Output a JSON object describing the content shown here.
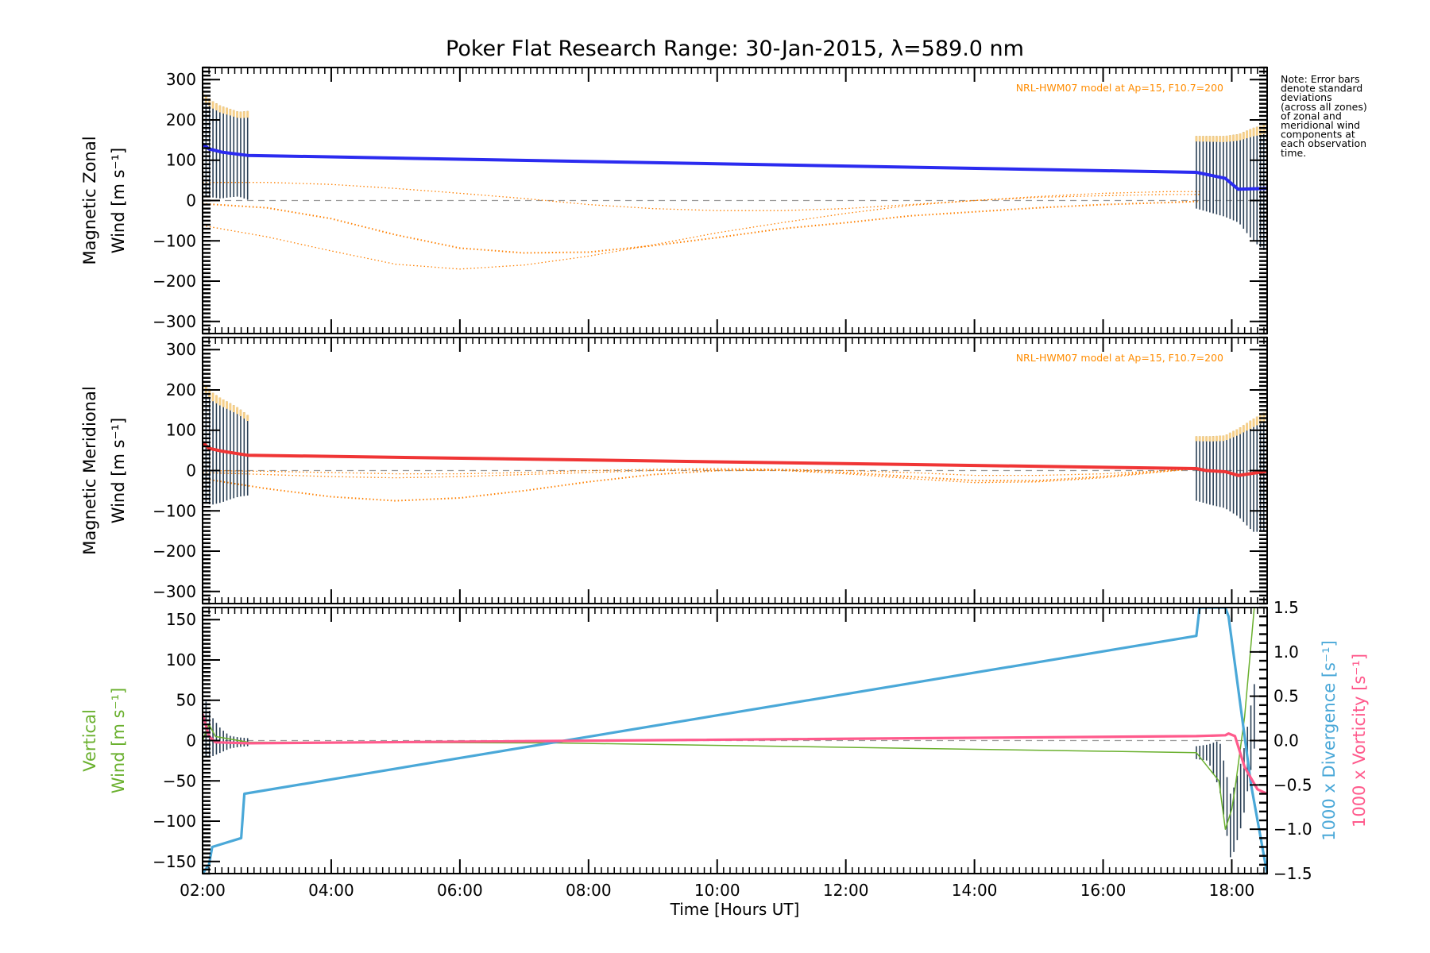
{
  "chart_data": {
    "type": "line",
    "title": "Poker Flat Research Range: 30-Jan-2015, λ=589.0 nm",
    "xlabel": "Time [Hours UT]",
    "xlim": [
      2.0,
      18.55
    ],
    "x_ticks": [
      2,
      4,
      6,
      8,
      10,
      12,
      14,
      16,
      18
    ],
    "x_tick_labels": [
      "02:00",
      "04:00",
      "06:00",
      "08:00",
      "10:00",
      "12:00",
      "14:00",
      "16:00",
      "18:00"
    ],
    "note_lines": [
      "Note: Error bars",
      "denote standard",
      "deviations",
      "(across all zones)",
      "of zonal and",
      "meridional wind",
      "components at",
      "each observation",
      "time."
    ],
    "colors": {
      "zonal": "#2b2bf0",
      "meridional": "#f03535",
      "model": "#ff8000",
      "vertical": "#6ab02e",
      "divergence": "#4aa8d8",
      "vorticity": "#ff5a8c",
      "errorbar": "#2a3f55",
      "sd_light": "#f5cf8a",
      "zero_line": "#999999"
    },
    "panels": [
      {
        "id": "zonal",
        "ylabel_lines": [
          "Magnetic Zonal",
          "Wind [m s⁻¹]"
        ],
        "ylim": [
          -330,
          330
        ],
        "y_ticks": [
          -300,
          -200,
          -100,
          0,
          100,
          200,
          300
        ],
        "y_tick_labels": [
          "−300",
          "−200",
          "−100",
          "0",
          "100",
          "200",
          "300"
        ],
        "model_label": "NRL-HWM07 model at Ap=15, F10.7=200",
        "series": [
          {
            "name": "Zonal wind",
            "x": [
              2.0,
              2.1,
              2.3,
              2.7,
              17.45,
              17.6,
              17.9,
              18.1,
              18.55
            ],
            "y": [
              140,
              128,
              120,
              112,
              70,
              65,
              55,
              28,
              30
            ]
          }
        ],
        "model_series": [
          {
            "name": "HWM07 zone 1",
            "x": [
              2.0,
              3.0,
              4.0,
              5.0,
              6.0,
              7.0,
              8.0,
              9.0,
              10.0,
              11.0,
              12.0,
              13.0,
              14.0,
              15.0,
              16.0,
              17.0,
              17.5
            ],
            "y": [
              -8,
              -18,
              -45,
              -85,
              -118,
              -130,
              -128,
              -112,
              -92,
              -70,
              -55,
              -38,
              -28,
              -18,
              -10,
              -5,
              -2
            ]
          },
          {
            "name": "HWM07 zone 2",
            "x": [
              2.0,
              3.0,
              4.0,
              5.0,
              6.0,
              7.0,
              8.0,
              9.0,
              10.0,
              11.0,
              12.0,
              13.0,
              14.0,
              15.0,
              16.0,
              17.0,
              17.5
            ],
            "y": [
              -62,
              -90,
              -125,
              -158,
              -170,
              -160,
              -138,
              -110,
              -80,
              -55,
              -32,
              -12,
              0,
              8,
              12,
              15,
              15
            ]
          },
          {
            "name": "HWM07 zone 3",
            "x": [
              2.0,
              3.0,
              4.0,
              5.0,
              6.0,
              7.0,
              8.0,
              9.0,
              10.0,
              11.0,
              12.0,
              13.0,
              14.0,
              15.0,
              16.0,
              17.0,
              17.5
            ],
            "y": [
              45,
              45,
              40,
              30,
              18,
              5,
              -10,
              -20,
              -25,
              -25,
              -20,
              -10,
              0,
              10,
              18,
              22,
              22
            ]
          }
        ],
        "error_bars": [
          {
            "x0": 2.0,
            "x1": 2.7,
            "y": [
              140,
              128,
              120,
              118,
              115,
              112
            ],
            "sd": [
              130,
              120,
              115,
              110,
              105,
              110
            ]
          },
          {
            "x0": 17.45,
            "x1": 18.55,
            "y": [
              70,
              65,
              60,
              55,
              40,
              30
            ],
            "sd": [
              90,
              95,
              100,
              110,
              140,
              160
            ]
          }
        ]
      },
      {
        "id": "meridional",
        "ylabel_lines": [
          "Magnetic Meridional",
          "Wind [m s⁻¹]"
        ],
        "ylim": [
          -330,
          330
        ],
        "y_ticks": [
          -300,
          -200,
          -100,
          0,
          100,
          200,
          300
        ],
        "y_tick_labels": [
          "−300",
          "−200",
          "−100",
          "0",
          "100",
          "200",
          "300"
        ],
        "model_label": "NRL-HWM07 model at Ap=15, F10.7=200",
        "series": [
          {
            "name": "Meridional wind",
            "x": [
              2.0,
              2.1,
              2.3,
              2.7,
              17.45,
              17.6,
              17.9,
              18.1,
              18.55
            ],
            "y": [
              70,
              55,
              48,
              38,
              5,
              0,
              -3,
              -12,
              -2
            ]
          }
        ],
        "model_series": [
          {
            "name": "HWM07 zone 1",
            "x": [
              2.0,
              3.0,
              4.0,
              5.0,
              6.0,
              7.0,
              8.0,
              9.0,
              10.0,
              11.0,
              12.0,
              13.0,
              14.0,
              15.0,
              16.0,
              17.0,
              17.5
            ],
            "y": [
              -20,
              -45,
              -65,
              -75,
              -68,
              -50,
              -28,
              -10,
              0,
              2,
              -5,
              -15,
              -25,
              -25,
              -15,
              0,
              8
            ]
          },
          {
            "name": "HWM07 zone 2",
            "x": [
              2.0,
              3.0,
              4.0,
              5.0,
              6.0,
              7.0,
              8.0,
              9.0,
              10.0,
              11.0,
              12.0,
              13.0,
              14.0,
              15.0,
              16.0,
              17.0,
              17.5
            ],
            "y": [
              -5,
              -10,
              -15,
              -18,
              -15,
              -10,
              -5,
              0,
              2,
              0,
              -8,
              -20,
              -30,
              -28,
              -18,
              -2,
              5
            ]
          },
          {
            "name": "HWM07 zone 3",
            "x": [
              2.0,
              3.0,
              4.0,
              5.0,
              6.0,
              7.0,
              8.0,
              9.0,
              10.0,
              11.0,
              12.0,
              13.0,
              14.0,
              15.0,
              16.0,
              17.0,
              17.5
            ],
            "y": [
              0,
              -2,
              -5,
              -8,
              -8,
              -5,
              0,
              3,
              5,
              3,
              0,
              -5,
              -12,
              -12,
              -8,
              0,
              4
            ]
          }
        ],
        "error_bars": [
          {
            "x0": 2.0,
            "x1": 2.7,
            "y": [
              70,
              55,
              50,
              48,
              45,
              38
            ],
            "sd": [
              150,
              140,
              130,
              120,
              110,
              100
            ]
          },
          {
            "x0": 17.45,
            "x1": 18.55,
            "y": [
              5,
              0,
              -3,
              -5,
              -12,
              -2
            ],
            "sd": [
              80,
              85,
              90,
              110,
              140,
              150
            ]
          }
        ]
      },
      {
        "id": "vertical",
        "ylabel_lines": [
          "Vertical",
          "Wind [m s⁻¹]"
        ],
        "ylim": [
          -165,
          165
        ],
        "y_ticks": [
          -150,
          -100,
          -50,
          0,
          50,
          100,
          150
        ],
        "y_tick_labels": [
          "−150",
          "−100",
          "−50",
          "0",
          "50",
          "100",
          "150"
        ],
        "y2lim": [
          -1.5,
          1.5
        ],
        "y2_ticks": [
          -1.5,
          -1.0,
          -0.5,
          0.0,
          0.5,
          1.0,
          1.5
        ],
        "y2_tick_labels": [
          "−1.5",
          "−1.0",
          "−0.5",
          "0.0",
          "0.5",
          "1.0",
          "1.5"
        ],
        "y2label_divergence": "1000 x Divergence [s⁻¹]",
        "y2label_vorticity": "1000 x Vorticity [s⁻¹]",
        "series": [
          {
            "name": "Vertical wind",
            "axis": "left",
            "x": [
              2.0,
              2.1,
              2.2,
              2.7,
              7.5,
              17.45,
              17.8,
              17.9,
              18.0,
              18.05,
              18.2,
              18.35
            ],
            "y": [
              0,
              20,
              5,
              -2,
              -3,
              -15,
              -50,
              -110,
              -85,
              -60,
              30,
              165
            ]
          },
          {
            "name": "1000 x Divergence",
            "axis": "right",
            "x": [
              2.0,
              2.1,
              2.15,
              2.6,
              2.65,
              17.45,
              17.5,
              17.9,
              17.95,
              18.3,
              18.55
            ],
            "y": [
              -1.5,
              -1.4,
              -1.2,
              -1.1,
              -0.6,
              1.18,
              1.5,
              1.5,
              1.4,
              -0.5,
              -1.5
            ]
          },
          {
            "name": "1000 x Vorticity",
            "axis": "right",
            "x": [
              2.0,
              2.1,
              2.2,
              2.7,
              17.45,
              17.9,
              17.95,
              18.05,
              18.2,
              18.4,
              18.55
            ],
            "y": [
              0.3,
              0.05,
              -0.02,
              -0.03,
              0.05,
              0.06,
              0.08,
              0.05,
              -0.3,
              -0.55,
              -0.6
            ]
          }
        ],
        "error_bars": [
          {
            "x0": 2.0,
            "x1": 2.7,
            "y": [
              20,
              5,
              0,
              -2,
              -2,
              -2
            ],
            "sd": [
              40,
              25,
              15,
              8,
              6,
              5
            ]
          },
          {
            "x0": 17.45,
            "x1": 18.35,
            "y": [
              -15,
              -15,
              -30,
              -110,
              -60,
              30
            ],
            "sd": [
              8,
              10,
              30,
              40,
              40,
              40
            ]
          }
        ]
      }
    ]
  }
}
